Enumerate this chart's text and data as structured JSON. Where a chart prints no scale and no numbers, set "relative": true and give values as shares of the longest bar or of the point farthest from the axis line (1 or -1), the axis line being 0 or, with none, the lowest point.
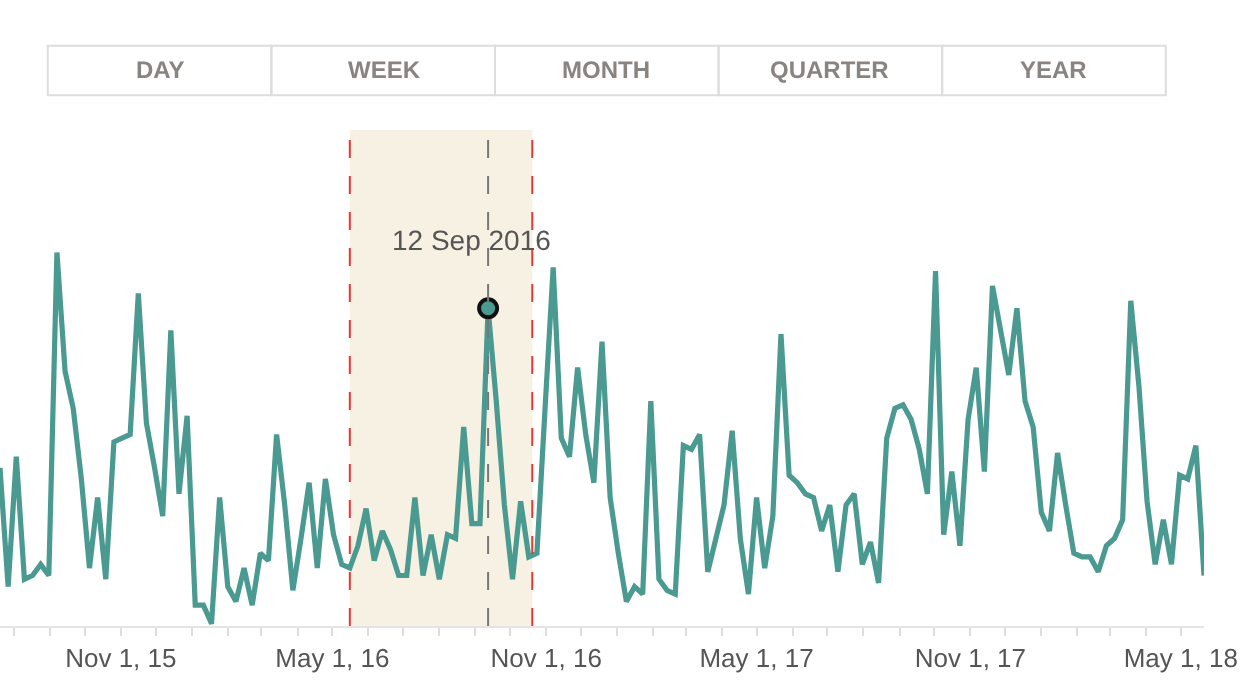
{
  "chart_data": {
    "type": "line",
    "relative": true,
    "marker": "none",
    "line_style": "solid",
    "x": [
      "2015-07-20",
      "2015-07-27",
      "2015-08-03",
      "2015-08-10",
      "2015-08-17",
      "2015-08-24",
      "2015-08-31",
      "2015-09-07",
      "2015-09-14",
      "2015-09-21",
      "2015-09-28",
      "2015-10-05",
      "2015-10-12",
      "2015-10-19",
      "2015-10-26",
      "2015-11-02",
      "2015-11-09",
      "2015-11-16",
      "2015-11-23",
      "2015-11-30",
      "2015-12-07",
      "2015-12-14",
      "2015-12-21",
      "2015-12-28",
      "2016-01-04",
      "2016-01-11",
      "2016-01-18",
      "2016-01-25",
      "2016-02-01",
      "2016-02-08",
      "2016-02-15",
      "2016-02-22",
      "2016-02-29",
      "2016-03-07",
      "2016-03-14",
      "2016-03-21",
      "2016-03-28",
      "2016-04-04",
      "2016-04-11",
      "2016-04-18",
      "2016-04-25",
      "2016-05-02",
      "2016-05-09",
      "2016-05-16",
      "2016-05-23",
      "2016-05-30",
      "2016-06-06",
      "2016-06-13",
      "2016-06-20",
      "2016-06-27",
      "2016-07-04",
      "2016-07-11",
      "2016-07-18",
      "2016-07-25",
      "2016-08-01",
      "2016-08-08",
      "2016-08-15",
      "2016-08-22",
      "2016-08-29",
      "2016-09-05",
      "2016-09-12",
      "2016-09-19",
      "2016-09-26",
      "2016-10-03",
      "2016-10-10",
      "2016-10-17",
      "2016-10-24",
      "2016-10-31",
      "2016-11-07",
      "2016-11-14",
      "2016-11-21",
      "2016-11-28",
      "2016-12-05",
      "2016-12-12",
      "2016-12-19",
      "2016-12-26",
      "2017-01-02",
      "2017-01-09",
      "2017-01-16",
      "2017-01-23",
      "2017-01-30",
      "2017-02-06",
      "2017-02-13",
      "2017-02-20",
      "2017-02-27",
      "2017-03-06",
      "2017-03-13",
      "2017-03-20",
      "2017-03-27",
      "2017-04-03",
      "2017-04-10",
      "2017-04-17",
      "2017-04-24",
      "2017-05-01",
      "2017-05-08",
      "2017-05-15",
      "2017-05-22",
      "2017-05-29",
      "2017-06-05",
      "2017-06-12",
      "2017-06-19",
      "2017-06-26",
      "2017-07-03",
      "2017-07-10",
      "2017-07-17",
      "2017-07-24",
      "2017-07-31",
      "2017-08-07",
      "2017-08-14",
      "2017-08-21",
      "2017-08-28",
      "2017-09-04",
      "2017-09-11",
      "2017-09-18",
      "2017-09-25",
      "2017-10-02",
      "2017-10-09",
      "2017-10-16",
      "2017-10-23",
      "2017-10-30",
      "2017-11-06",
      "2017-11-13",
      "2017-11-20",
      "2017-11-27",
      "2017-12-04",
      "2017-12-11",
      "2017-12-18",
      "2017-12-25",
      "2018-01-01",
      "2018-01-08",
      "2018-01-15",
      "2018-01-22",
      "2018-01-29",
      "2018-02-05",
      "2018-02-12",
      "2018-02-19",
      "2018-02-26",
      "2018-03-05",
      "2018-03-12",
      "2018-03-19",
      "2018-03-26",
      "2018-04-02",
      "2018-04-09",
      "2018-04-16",
      "2018-04-23",
      "2018-04-30",
      "2018-05-07",
      "2018-05-14",
      "2018-05-21"
    ],
    "series": [
      {
        "color": "#4a9a92",
        "values": [
          0.42,
          0.1,
          0.45,
          0.12,
          0.13,
          0.16,
          0.13,
          1.0,
          0.68,
          0.58,
          0.39,
          0.15,
          0.34,
          0.12,
          0.49,
          0.5,
          0.51,
          0.89,
          0.54,
          0.42,
          0.29,
          0.79,
          0.35,
          0.56,
          0.05,
          0.05,
          0.0,
          0.34,
          0.1,
          0.06,
          0.15,
          0.05,
          0.19,
          0.17,
          0.51,
          0.32,
          0.09,
          0.23,
          0.38,
          0.15,
          0.39,
          0.24,
          0.16,
          0.15,
          0.21,
          0.31,
          0.17,
          0.25,
          0.2,
          0.13,
          0.13,
          0.34,
          0.13,
          0.24,
          0.12,
          0.24,
          0.23,
          0.53,
          0.27,
          0.27,
          0.85,
          0.6,
          0.32,
          0.12,
          0.33,
          0.18,
          0.19,
          0.58,
          0.96,
          0.5,
          0.45,
          0.69,
          0.51,
          0.38,
          0.76,
          0.34,
          0.19,
          0.06,
          0.1,
          0.08,
          0.6,
          0.12,
          0.09,
          0.08,
          0.48,
          0.47,
          0.51,
          0.14,
          0.23,
          0.32,
          0.52,
          0.23,
          0.08,
          0.34,
          0.15,
          0.29,
          0.78,
          0.4,
          0.38,
          0.35,
          0.34,
          0.25,
          0.32,
          0.14,
          0.32,
          0.35,
          0.16,
          0.22,
          0.11,
          0.5,
          0.58,
          0.59,
          0.55,
          0.47,
          0.35,
          0.95,
          0.24,
          0.41,
          0.21,
          0.55,
          0.69,
          0.41,
          0.91,
          0.79,
          0.67,
          0.85,
          0.6,
          0.53,
          0.3,
          0.25,
          0.46,
          0.32,
          0.19,
          0.18,
          0.18,
          0.14,
          0.21,
          0.23,
          0.28,
          0.87,
          0.64,
          0.33,
          0.16,
          0.28,
          0.16,
          0.4,
          0.39,
          0.48,
          0.13
        ]
      }
    ],
    "xlim": [
      "2015-07-20",
      "2018-05-21"
    ],
    "xticks": [
      {
        "value": "2015-08-01",
        "label": null
      },
      {
        "value": "2015-09-01",
        "label": null
      },
      {
        "value": "2015-10-01",
        "label": null
      },
      {
        "value": "2015-11-01",
        "label": "Nov 1, 15"
      },
      {
        "value": "2015-12-01",
        "label": null
      },
      {
        "value": "2016-01-01",
        "label": null
      },
      {
        "value": "2016-02-01",
        "label": null
      },
      {
        "value": "2016-03-01",
        "label": null
      },
      {
        "value": "2016-04-01",
        "label": null
      },
      {
        "value": "2016-05-01",
        "label": "May 1, 16"
      },
      {
        "value": "2016-06-01",
        "label": null
      },
      {
        "value": "2016-07-01",
        "label": null
      },
      {
        "value": "2016-08-01",
        "label": null
      },
      {
        "value": "2016-09-01",
        "label": null
      },
      {
        "value": "2016-10-01",
        "label": null
      },
      {
        "value": "2016-11-01",
        "label": "Nov 1, 16"
      },
      {
        "value": "2016-12-01",
        "label": null
      },
      {
        "value": "2017-01-01",
        "label": null
      },
      {
        "value": "2017-02-01",
        "label": null
      },
      {
        "value": "2017-03-01",
        "label": null
      },
      {
        "value": "2017-04-01",
        "label": null
      },
      {
        "value": "2017-05-01",
        "label": "May 1, 17"
      },
      {
        "value": "2017-06-01",
        "label": null
      },
      {
        "value": "2017-07-01",
        "label": null
      },
      {
        "value": "2017-08-01",
        "label": null
      },
      {
        "value": "2017-09-01",
        "label": null
      },
      {
        "value": "2017-10-01",
        "label": null
      },
      {
        "value": "2017-11-01",
        "label": "Nov 1, 17"
      },
      {
        "value": "2017-12-01",
        "label": null
      },
      {
        "value": "2018-01-01",
        "label": null
      },
      {
        "value": "2018-02-01",
        "label": null
      },
      {
        "value": "2018-03-01",
        "label": null
      },
      {
        "value": "2018-04-01",
        "label": null
      },
      {
        "value": "2018-05-01",
        "label": "May 1, 18"
      }
    ],
    "bands": [
      {
        "axis": "x",
        "from": "2016-05-16",
        "to": "2016-10-20",
        "color": "#f7f1e4"
      }
    ],
    "ref_lines": [
      {
        "axis": "x",
        "value": "2016-05-16",
        "color": "#e03a3a",
        "line_style": "dashed"
      },
      {
        "axis": "x",
        "value": "2016-10-20",
        "color": "#e03a3a",
        "line_style": "dashed"
      },
      {
        "axis": "x",
        "value": "2016-09-12",
        "color": "#777777",
        "line_style": "dashed"
      }
    ],
    "annotations": [
      "DAY",
      "WEEK",
      "MONTH",
      "QUARTER",
      "YEAR",
      {
        "text": "12 Sep 2016",
        "x": "2016-09-12",
        "y": 0.85
      }
    ]
  }
}
